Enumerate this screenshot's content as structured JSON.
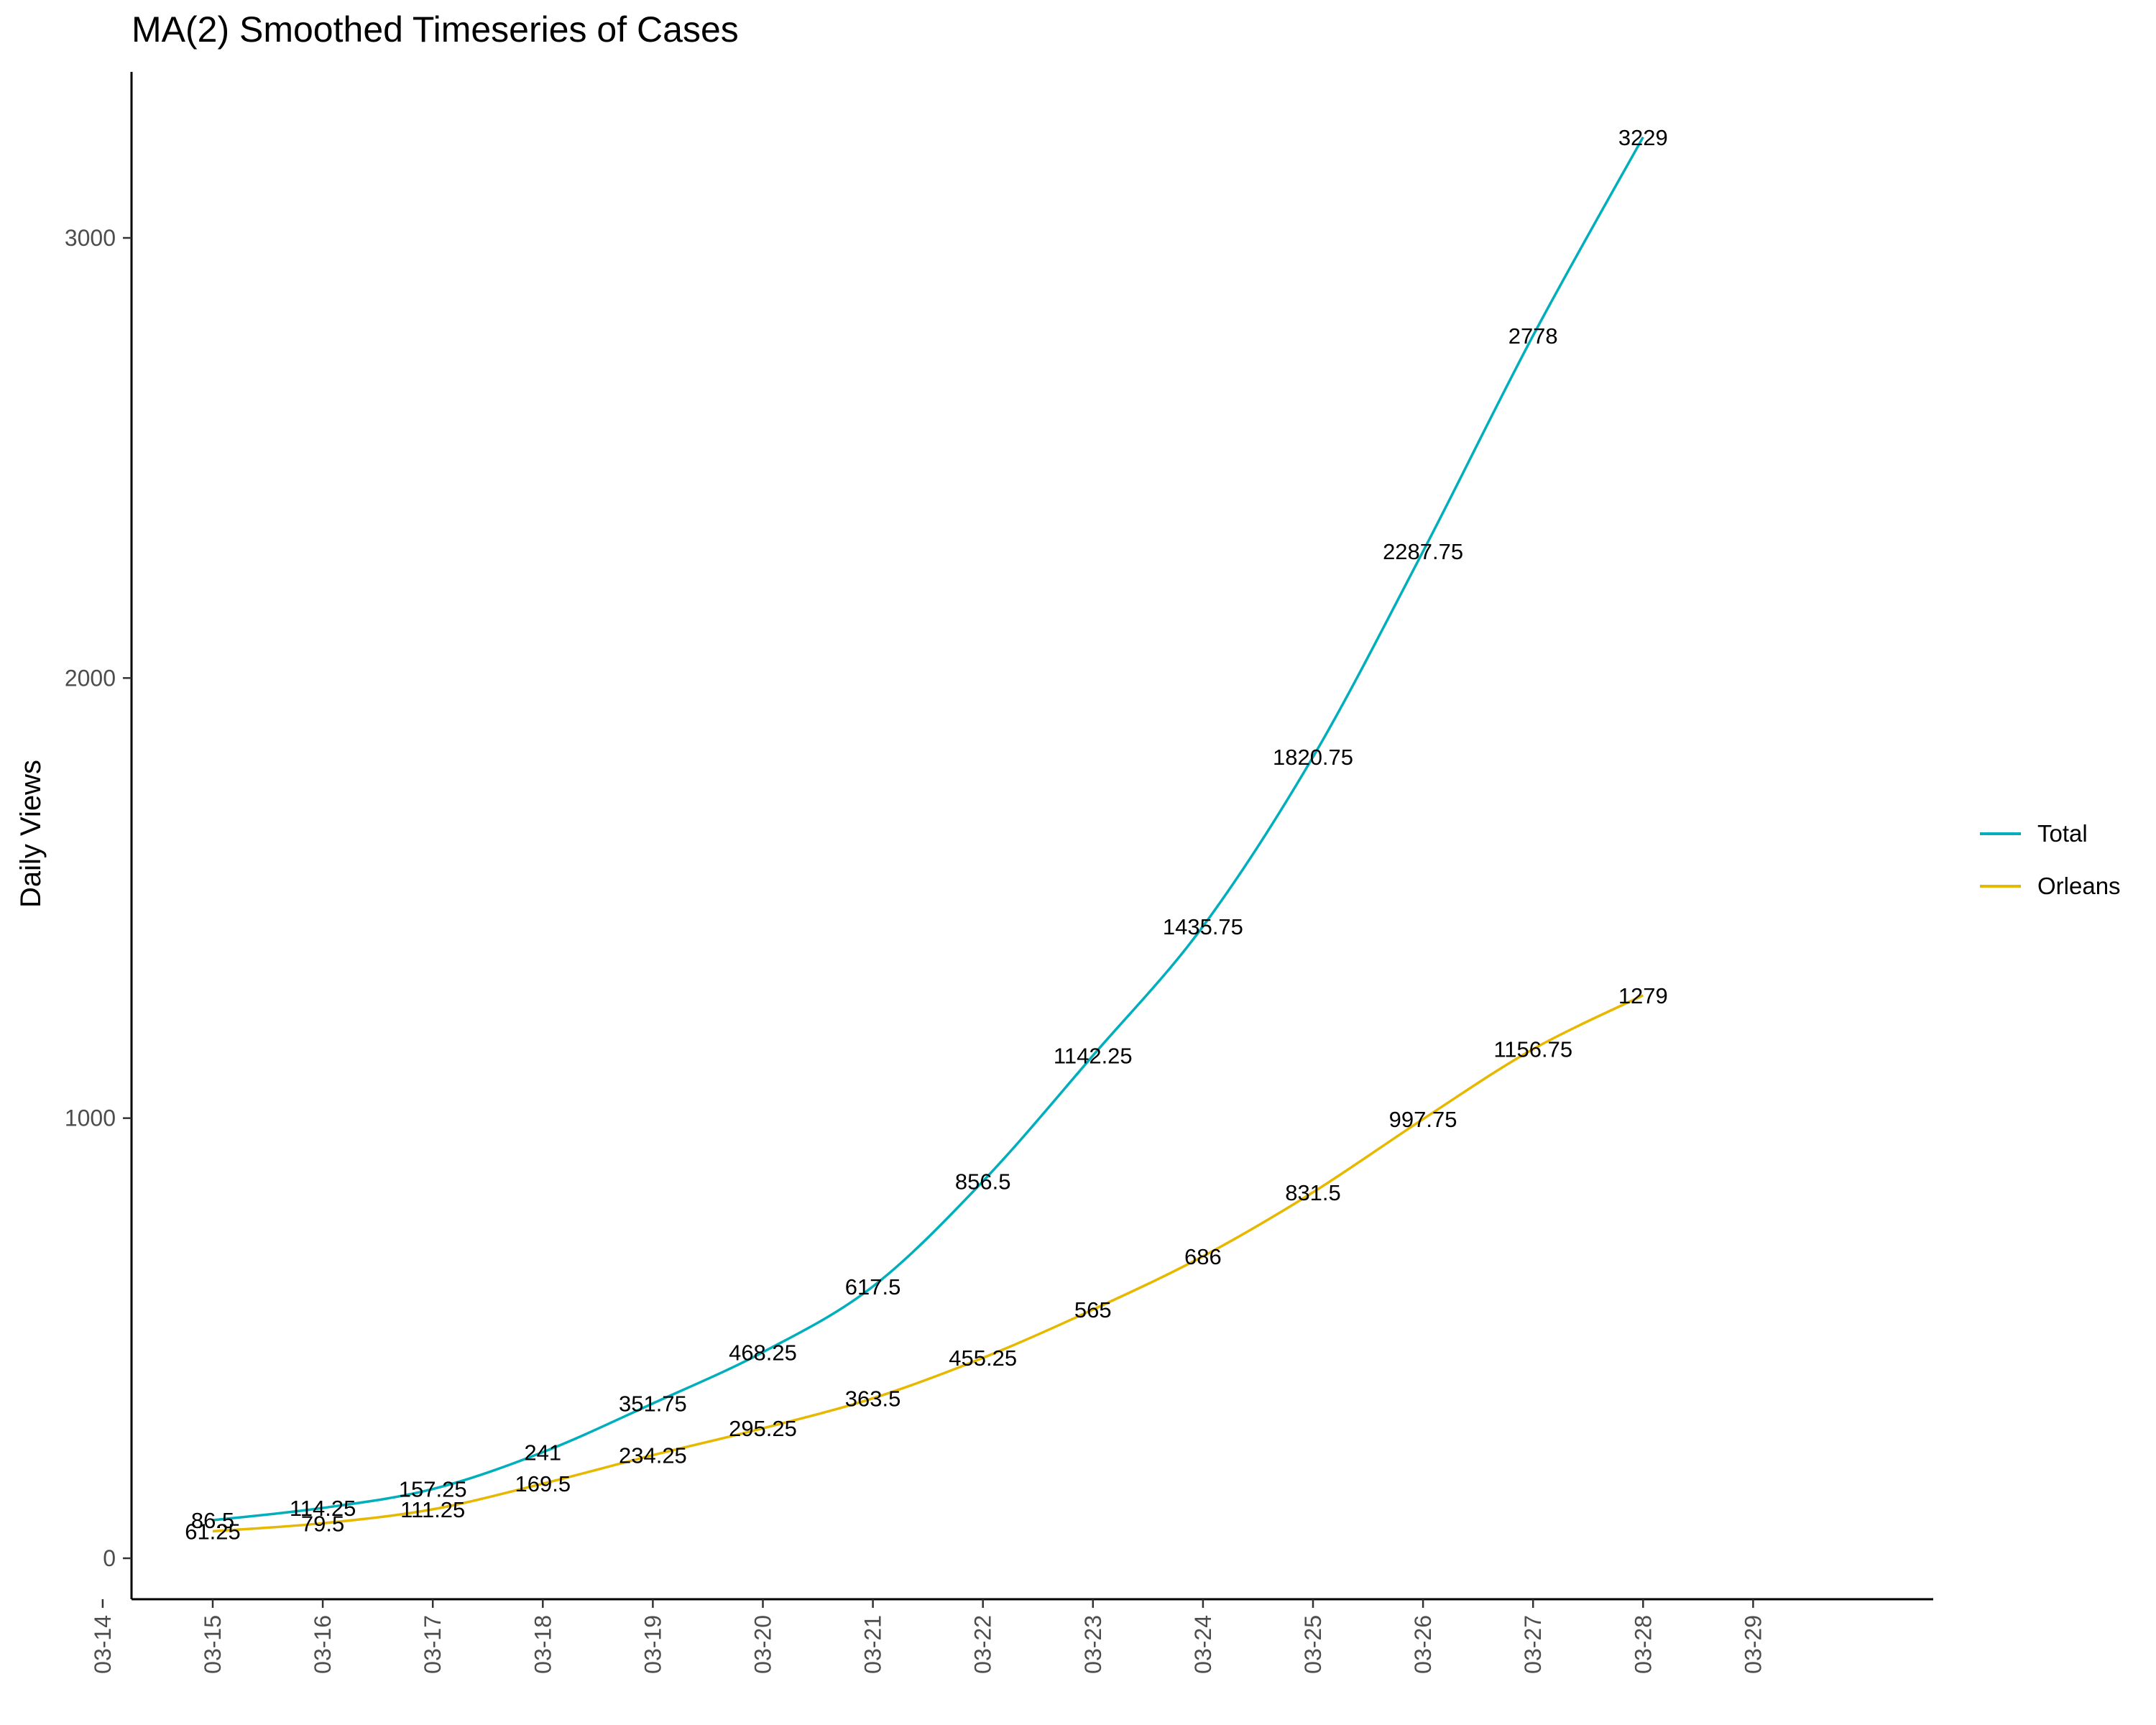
{
  "chart_data": {
    "type": "line",
    "title": "MA(2) Smoothed Timeseries of Cases",
    "xlabel": "",
    "ylabel": "Daily Views",
    "x_ticks": [
      "03-14",
      "03-15",
      "03-16",
      "03-17",
      "03-18",
      "03-19",
      "03-20",
      "03-21",
      "03-22",
      "03-23",
      "03-24",
      "03-25",
      "03-26",
      "03-27",
      "03-28",
      "03-29"
    ],
    "y_ticks": [
      "0",
      "1000",
      "2000",
      "3000"
    ],
    "ylim": [
      -100,
      3380
    ],
    "grid": false,
    "legend_position": "right",
    "series": [
      {
        "name": "Total",
        "color": "#00AFBB",
        "x": [
          "03-15",
          "03-16",
          "03-17",
          "03-18",
          "03-19",
          "03-20",
          "03-21",
          "03-22",
          "03-23",
          "03-24",
          "03-25",
          "03-26",
          "03-27",
          "03-28"
        ],
        "values": [
          86.5,
          114.25,
          157.25,
          241,
          351.75,
          468.25,
          617.5,
          856.5,
          1142.25,
          1435.75,
          1820.75,
          2287.75,
          2778,
          3229
        ],
        "labels": [
          "86.5",
          "114.25",
          "157.25",
          "241",
          "351.75",
          "468.25",
          "617.5",
          "856.5",
          "1142.25",
          "1435.75",
          "1820.75",
          "2287.75",
          "2778",
          "3229"
        ]
      },
      {
        "name": "Orleans",
        "color": "#E7B800",
        "x": [
          "03-15",
          "03-16",
          "03-17",
          "03-18",
          "03-19",
          "03-20",
          "03-21",
          "03-22",
          "03-23",
          "03-24",
          "03-25",
          "03-26",
          "03-27",
          "03-28"
        ],
        "values": [
          61.25,
          79.5,
          111.25,
          169.5,
          234.25,
          295.25,
          363.5,
          455.25,
          565,
          686,
          831.5,
          997.75,
          1156.75,
          1279
        ],
        "labels": [
          "61.25",
          "79.5",
          "111.25",
          "169.5",
          "234.25",
          "295.25",
          "363.5",
          "455.25",
          "565",
          "686",
          "831.5",
          "997.75",
          "1156.75",
          "1279"
        ]
      }
    ]
  }
}
